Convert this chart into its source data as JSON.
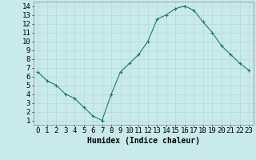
{
  "x": [
    0,
    1,
    2,
    3,
    4,
    5,
    6,
    7,
    8,
    9,
    10,
    11,
    12,
    13,
    14,
    15,
    16,
    17,
    18,
    19,
    20,
    21,
    22,
    23
  ],
  "y": [
    6.5,
    5.5,
    5.0,
    4.0,
    3.5,
    2.5,
    1.5,
    1.0,
    4.0,
    6.5,
    7.5,
    8.5,
    10.0,
    12.5,
    13.0,
    13.7,
    14.0,
    13.5,
    12.2,
    11.0,
    9.5,
    8.5,
    7.5,
    6.7
  ],
  "xlabel": "Humidex (Indice chaleur)",
  "xlim": [
    -0.5,
    23.5
  ],
  "ylim": [
    0.5,
    14.5
  ],
  "xticks": [
    0,
    1,
    2,
    3,
    4,
    5,
    6,
    7,
    8,
    9,
    10,
    11,
    12,
    13,
    14,
    15,
    16,
    17,
    18,
    19,
    20,
    21,
    22,
    23
  ],
  "yticks": [
    1,
    2,
    3,
    4,
    5,
    6,
    7,
    8,
    9,
    10,
    11,
    12,
    13,
    14
  ],
  "line_color": "#1a7a6e",
  "marker_color": "#1a7a6e",
  "bg_color": "#c8eaea",
  "grid_color": "#b8d8d8",
  "xlabel_fontsize": 7,
  "tick_fontsize": 6.5
}
